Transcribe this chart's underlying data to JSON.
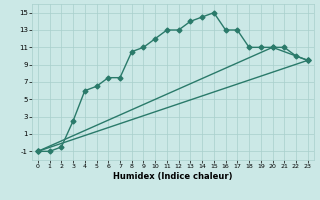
{
  "xlabel": "Humidex (Indice chaleur)",
  "xlim": [
    -0.5,
    23.5
  ],
  "ylim": [
    -2,
    16
  ],
  "xticks": [
    0,
    1,
    2,
    3,
    4,
    5,
    6,
    7,
    8,
    9,
    10,
    11,
    12,
    13,
    14,
    15,
    16,
    17,
    18,
    19,
    20,
    21,
    22,
    23
  ],
  "yticks": [
    -1,
    1,
    3,
    5,
    7,
    9,
    11,
    13,
    15
  ],
  "background_color": "#cbe8e6",
  "grid_color": "#a8cfcc",
  "line_color": "#2a7a6a",
  "line1_x": [
    0,
    1,
    2,
    3,
    4,
    5,
    6,
    7,
    8,
    9,
    10,
    11,
    12,
    13,
    14,
    15,
    16,
    17,
    18,
    19,
    20,
    21,
    22,
    23
  ],
  "line1_y": [
    -1,
    -1,
    -0.5,
    2.5,
    6,
    6.5,
    7.5,
    7.5,
    10.5,
    11,
    12,
    13,
    13,
    14,
    14.5,
    15,
    13,
    13,
    11,
    11,
    11,
    11,
    10,
    9.5
  ],
  "line2_x": [
    0,
    23
  ],
  "line2_y": [
    -1,
    9.5
  ],
  "line3_x": [
    0,
    20,
    23
  ],
  "line3_y": [
    -1,
    11,
    9.5
  ],
  "marker": "D",
  "marker_size": 2.5,
  "line_width": 1.0
}
